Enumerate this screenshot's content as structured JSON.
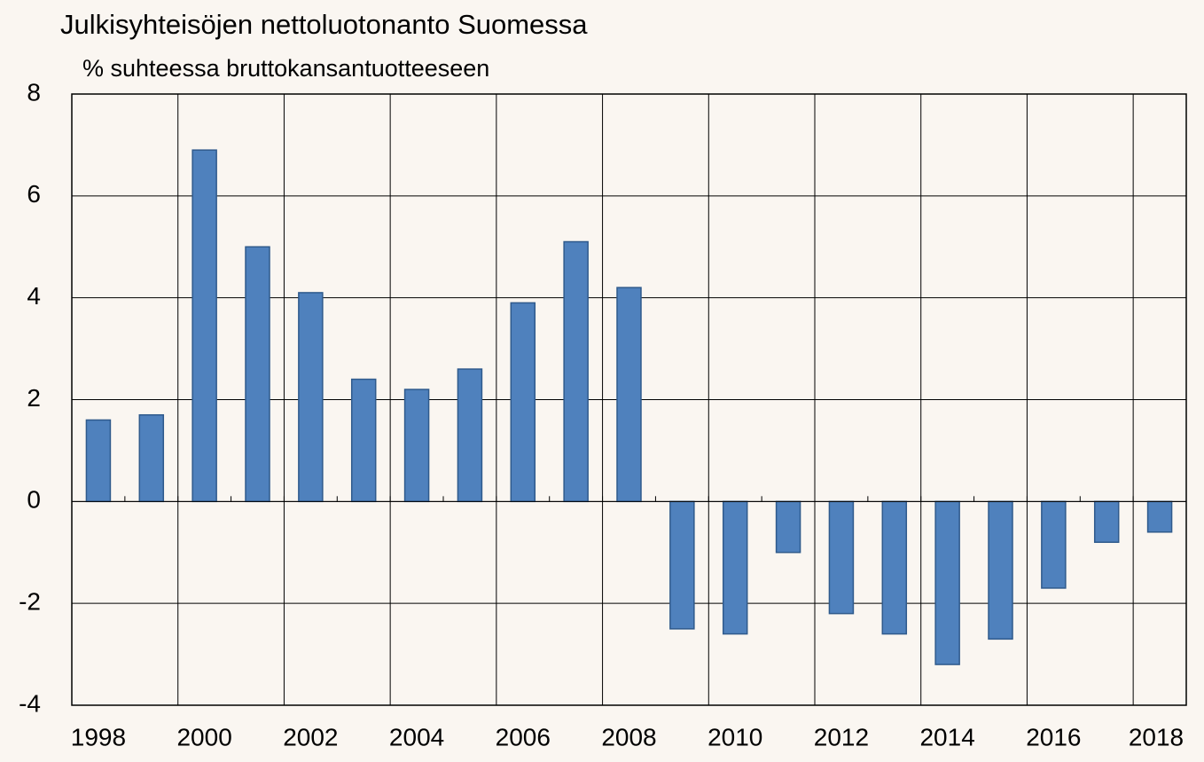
{
  "chart_data": {
    "type": "bar",
    "title": "Julkisyhteisöjen nettoluotonanto Suomessa",
    "subtitle": "% suhteessa bruttokansantuotteeseen",
    "categories": [
      "1998",
      null,
      "2000",
      null,
      "2002",
      null,
      "2004",
      null,
      "2006",
      null,
      "2008",
      null,
      "2010",
      null,
      "2012",
      null,
      "2014",
      null,
      "2016",
      null,
      "2018"
    ],
    "values": [
      1.6,
      1.7,
      6.9,
      5.0,
      4.1,
      2.4,
      2.2,
      2.6,
      3.9,
      5.1,
      4.2,
      -2.5,
      -2.6,
      -1.0,
      -2.2,
      -2.6,
      -3.2,
      -2.7,
      -1.7,
      -0.8,
      -0.6
    ],
    "color": "#4f81bd",
    "ylim": [
      -4,
      8
    ],
    "yticks": [
      -4,
      -2,
      0,
      2,
      4,
      6,
      8
    ],
    "grid": true
  }
}
